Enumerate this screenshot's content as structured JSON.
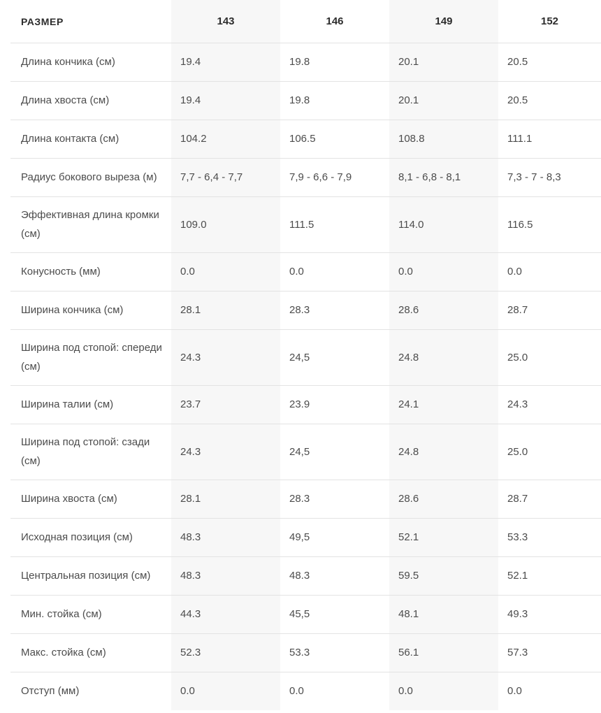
{
  "table": {
    "header": {
      "label": "РАЗМЕР",
      "sizes": [
        "143",
        "146",
        "149",
        "152"
      ]
    },
    "rows": [
      {
        "label": "Длина кончика (см)",
        "values": [
          "19.4",
          "19.8",
          "20.1",
          "20.5"
        ]
      },
      {
        "label": "Длина хвоста (см)",
        "values": [
          "19.4",
          "19.8",
          "20.1",
          "20.5"
        ]
      },
      {
        "label": "Длина контакта (см)",
        "values": [
          "104.2",
          "106.5",
          "108.8",
          "111.1"
        ]
      },
      {
        "label": "Радиус бокового выреза (м)",
        "values": [
          "7,7 - 6,4 - 7,7",
          "7,9 - 6,6 - 7,9",
          "8,1 - 6,8 - 8,1",
          "7,3 - 7 - 8,3"
        ]
      },
      {
        "label": "Эффективная длина кромки (см)",
        "values": [
          "109.0",
          "111.5",
          "114.0",
          "116.5"
        ]
      },
      {
        "label": "Конусность (мм)",
        "values": [
          "0.0",
          "0.0",
          "0.0",
          "0.0"
        ]
      },
      {
        "label": "Ширина кончика (см)",
        "values": [
          "28.1",
          "28.3",
          "28.6",
          "28.7"
        ]
      },
      {
        "label": "Ширина под стопой: спереди (см)",
        "values": [
          "24.3",
          "24,5",
          "24.8",
          "25.0"
        ]
      },
      {
        "label": "Ширина талии (см)",
        "values": [
          "23.7",
          "23.9",
          "24.1",
          "24.3"
        ]
      },
      {
        "label": "Ширина под стопой: сзади (см)",
        "values": [
          "24.3",
          "24,5",
          "24.8",
          "25.0"
        ]
      },
      {
        "label": "Ширина хвоста (см)",
        "values": [
          "28.1",
          "28.3",
          "28.6",
          "28.7"
        ]
      },
      {
        "label": "Исходная позиция (см)",
        "values": [
          "48.3",
          "49,5",
          "52.1",
          "53.3"
        ]
      },
      {
        "label": "Центральная позиция (см)",
        "values": [
          "48.3",
          "48.3",
          "59.5",
          "52.1"
        ]
      },
      {
        "label": "Мин. стойка (см)",
        "values": [
          "44.3",
          "45,5",
          "48.1",
          "49.3"
        ]
      },
      {
        "label": "Макс. стойка (см)",
        "values": [
          "52.3",
          "53.3",
          "56.1",
          "57.3"
        ]
      },
      {
        "label": "Отступ (мм)",
        "values": [
          "0.0",
          "0.0",
          "0.0",
          "0.0"
        ]
      }
    ]
  },
  "colors": {
    "shaded_column_bg": "#f7f7f7",
    "divider": "#e3e3e3",
    "text": "#4c4c4c",
    "header_text": "#2d2d2d"
  }
}
